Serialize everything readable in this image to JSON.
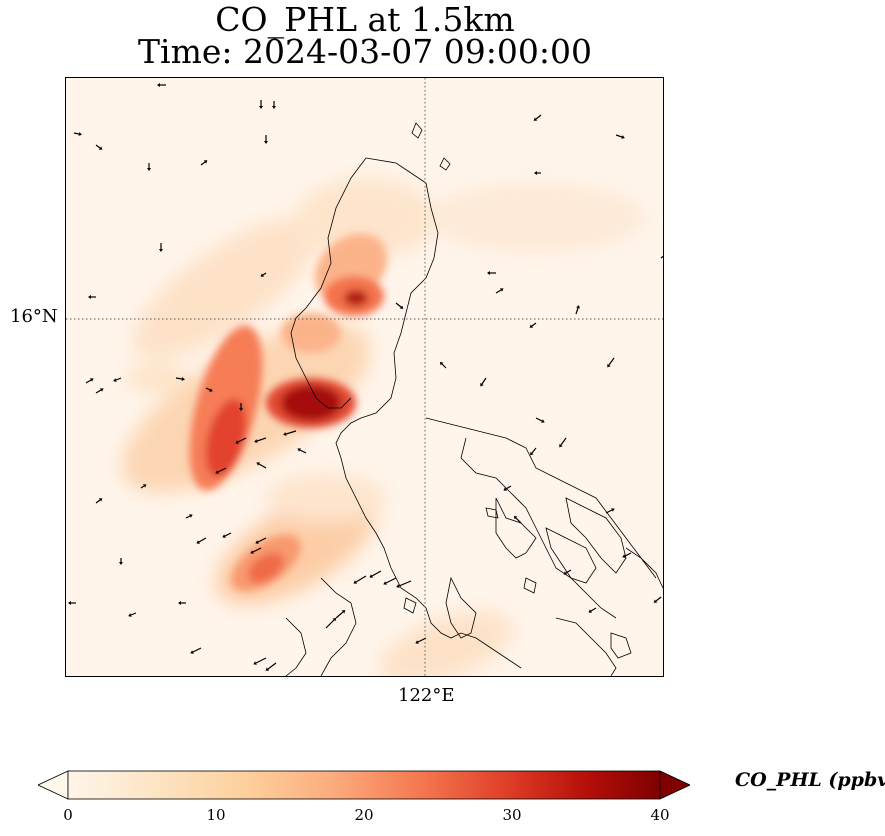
{
  "title": {
    "line1": "CO_PHL at 1.5km",
    "line2": "Time: 2024-03-07 09:00:00"
  },
  "map": {
    "lat_label": "16°N",
    "lon_label": "122°E",
    "background_color": "#fff5eb",
    "grid_style": "dotted",
    "features": [
      "coastlines",
      "wind-vectors",
      "CO concentration field"
    ]
  },
  "colorbar": {
    "label": "CO_PHL (ppbv)",
    "ticks": [
      "0",
      "10",
      "20",
      "30",
      "40"
    ],
    "min": 0,
    "max": 40,
    "colormap": "OrRd",
    "extend": "both"
  }
}
